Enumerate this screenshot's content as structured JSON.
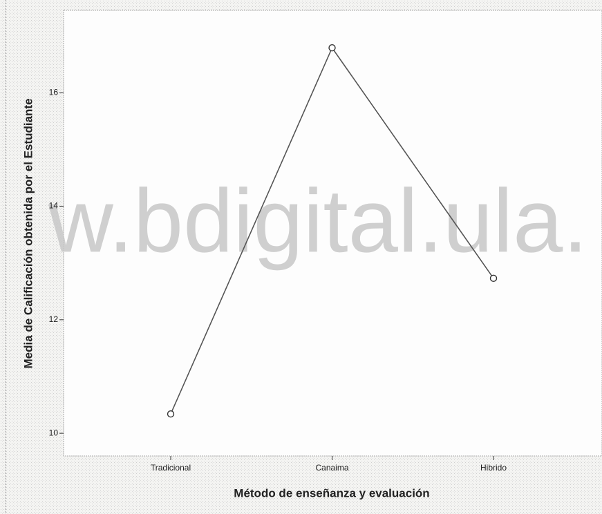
{
  "chart_data": {
    "type": "line",
    "x_label": "Método de enseñanza y evaluación",
    "y_label": "Media de Calificación obtenida por el Estudiante",
    "watermark": "w.bdigital.ula.",
    "categories": [
      "Tradicional",
      "Canaima",
      "Hibrido"
    ],
    "series": [
      {
        "color": "#555555",
        "values": [
          10.34,
          16.79,
          12.73
        ]
      }
    ],
    "ylim": [
      9.6,
      17.45
    ],
    "yticks": [
      10,
      12,
      14,
      16
    ],
    "grid": false
  }
}
